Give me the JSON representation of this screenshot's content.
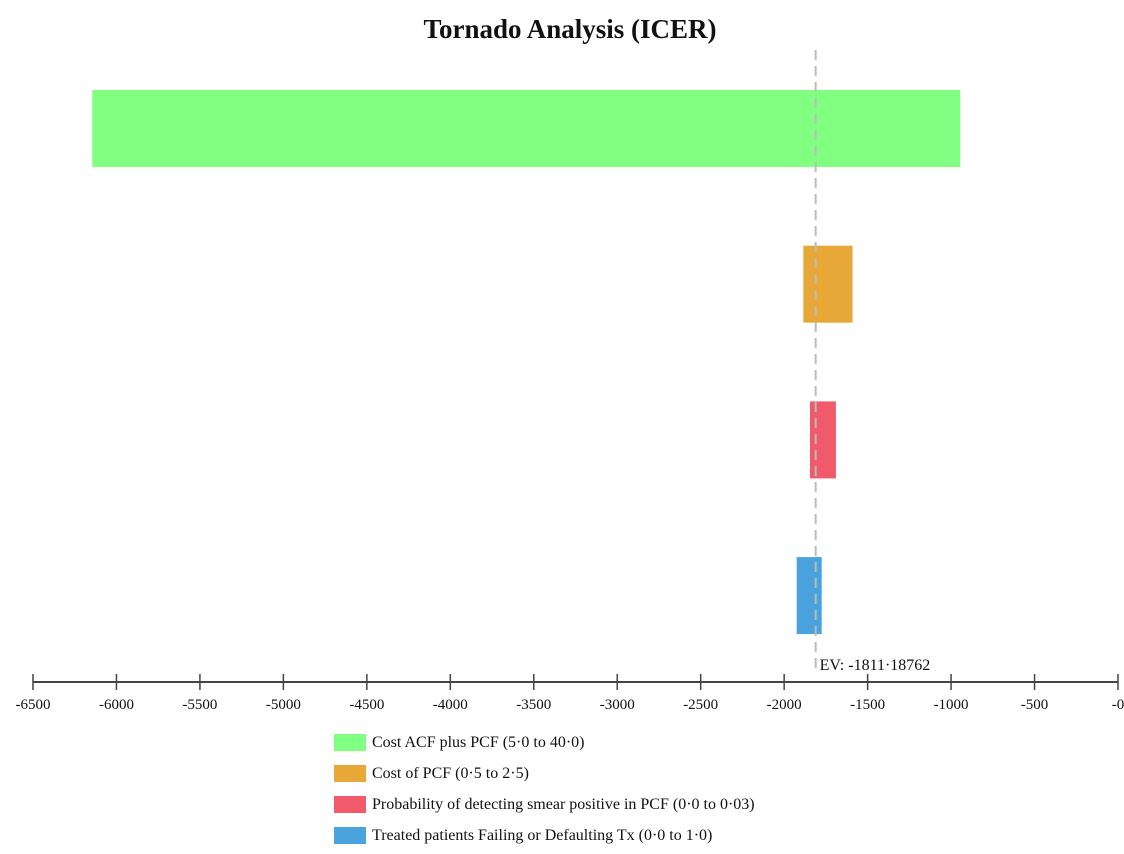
{
  "chart_data": {
    "type": "bar",
    "orientation": "horizontal",
    "title": "Tornado Analysis (ICER)",
    "xlim": [
      -6500,
      0
    ],
    "x_ticks": [
      -6500,
      -6000,
      -5500,
      -5000,
      -4500,
      -4000,
      -3500,
      -3000,
      -2500,
      -2000,
      -1500,
      -1000,
      -500,
      0
    ],
    "x_tick_labels": [
      "-6500",
      "-6000",
      "-5500",
      "-5000",
      "-4500",
      "-4000",
      "-3500",
      "-3000",
      "-2500",
      "-2000",
      "-1500",
      "-1000",
      "-500",
      "-0"
    ],
    "expected_value": -1811.18762,
    "ev_label": "EV: -1811·18762",
    "bars": [
      {
        "variable": "Cost ACF plus PCF (5·0 to 40·0)",
        "low": -6145,
        "high": -945,
        "color": "#80ff80"
      },
      {
        "variable": "Cost of PCF (0·5 to 2·5)",
        "low": -1885,
        "high": -1590,
        "color": "#e8a838"
      },
      {
        "variable": "Probability of detecting smear positive in PCF (0·0 to 0·03)",
        "low": -1845,
        "high": -1690,
        "color": "#f05a6a"
      },
      {
        "variable": "Treated patients Failing or Defaulting Tx (0·0 to 1·0)",
        "low": -1925,
        "high": -1775,
        "color": "#4aa3dc"
      }
    ],
    "legend_position": "bottom"
  }
}
